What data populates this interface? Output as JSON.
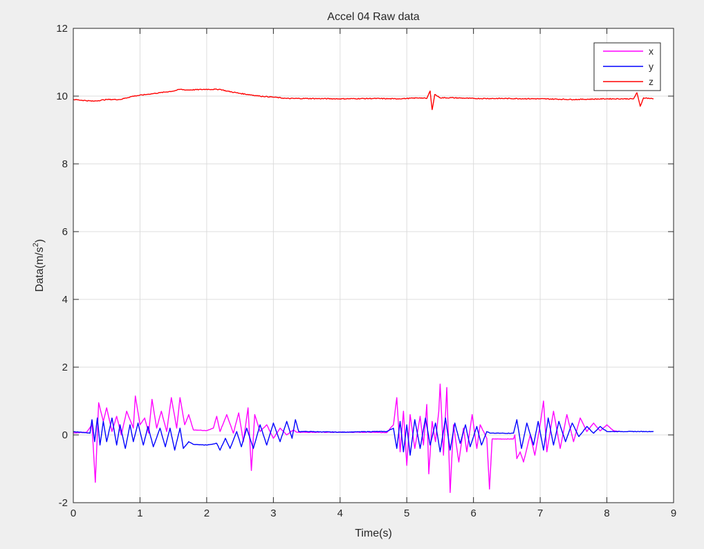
{
  "window": {
    "background": "#efefef"
  },
  "chart_data": {
    "type": "line",
    "title": "Accel 04 Raw data",
    "xlabel": "Time(s)",
    "ylabel": {
      "text": "Data(m/s",
      "superscript": "2",
      "suffix": ")"
    },
    "xlim": [
      0,
      9
    ],
    "ylim": [
      -2,
      12
    ],
    "xticks": [
      0,
      1,
      2,
      3,
      4,
      5,
      6,
      7,
      8,
      9
    ],
    "xtick_labels": [
      "0",
      "1",
      "2",
      "3",
      "4",
      "5",
      "6",
      "7",
      "8",
      "9"
    ],
    "yticks": [
      -2,
      0,
      2,
      4,
      6,
      8,
      10,
      12
    ],
    "ytick_labels": [
      "-2",
      "0",
      "2",
      "4",
      "6",
      "8",
      "10",
      "12"
    ],
    "grid": true,
    "legend_position": "top-right",
    "series": [
      {
        "name": "x",
        "color": "#ff00ff",
        "points": [
          [
            0,
            0.06
          ],
          [
            0.2,
            0.08
          ],
          [
            0.28,
            0.3
          ],
          [
            0.33,
            -1.4
          ],
          [
            0.38,
            0.95
          ],
          [
            0.45,
            0.4
          ],
          [
            0.5,
            0.8
          ],
          [
            0.58,
            0.1
          ],
          [
            0.65,
            0.55
          ],
          [
            0.72,
            0.0
          ],
          [
            0.8,
            0.7
          ],
          [
            0.9,
            0.2
          ],
          [
            0.93,
            1.15
          ],
          [
            1.0,
            0.3
          ],
          [
            1.07,
            0.5
          ],
          [
            1.13,
            0.05
          ],
          [
            1.18,
            1.05
          ],
          [
            1.25,
            0.2
          ],
          [
            1.32,
            0.7
          ],
          [
            1.4,
            0.1
          ],
          [
            1.47,
            1.1
          ],
          [
            1.55,
            0.2
          ],
          [
            1.6,
            1.1
          ],
          [
            1.67,
            0.3
          ],
          [
            1.73,
            0.6
          ],
          [
            1.8,
            0.15
          ],
          [
            1.9,
            0.14
          ],
          [
            2.0,
            0.13
          ],
          [
            2.1,
            0.2
          ],
          [
            2.15,
            0.55
          ],
          [
            2.2,
            0.1
          ],
          [
            2.3,
            0.6
          ],
          [
            2.4,
            0.05
          ],
          [
            2.48,
            0.65
          ],
          [
            2.55,
            -0.2
          ],
          [
            2.62,
            0.8
          ],
          [
            2.67,
            -1.05
          ],
          [
            2.72,
            0.6
          ],
          [
            2.8,
            0.1
          ],
          [
            2.9,
            0.3
          ],
          [
            3.0,
            -0.1
          ],
          [
            3.1,
            0.2
          ],
          [
            3.2,
            0.0
          ],
          [
            3.3,
            0.15
          ],
          [
            3.35,
            0.08
          ],
          [
            3.5,
            0.08
          ],
          [
            4.0,
            0.08
          ],
          [
            4.5,
            0.08
          ],
          [
            4.7,
            0.07
          ],
          [
            4.8,
            0.3
          ],
          [
            4.85,
            1.1
          ],
          [
            4.9,
            -0.5
          ],
          [
            4.95,
            0.7
          ],
          [
            5.0,
            -0.9
          ],
          [
            5.05,
            0.6
          ],
          [
            5.12,
            -0.4
          ],
          [
            5.2,
            0.55
          ],
          [
            5.25,
            -0.3
          ],
          [
            5.3,
            0.9
          ],
          [
            5.33,
            -1.15
          ],
          [
            5.38,
            0.4
          ],
          [
            5.43,
            -0.2
          ],
          [
            5.48,
            0.7
          ],
          [
            5.5,
            1.5
          ],
          [
            5.55,
            -0.6
          ],
          [
            5.6,
            1.4
          ],
          [
            5.65,
            -1.7
          ],
          [
            5.7,
            0.3
          ],
          [
            5.78,
            -0.8
          ],
          [
            5.85,
            0.2
          ],
          [
            5.9,
            -0.5
          ],
          [
            5.98,
            0.6
          ],
          [
            6.05,
            -0.4
          ],
          [
            6.1,
            0.3
          ],
          [
            6.2,
            -0.1
          ],
          [
            6.24,
            -1.6
          ],
          [
            6.28,
            -0.12
          ],
          [
            6.4,
            -0.12
          ],
          [
            6.6,
            -0.12
          ],
          [
            6.62,
            0.0
          ],
          [
            6.65,
            -0.7
          ],
          [
            6.7,
            -0.5
          ],
          [
            6.75,
            -0.8
          ],
          [
            6.85,
            0.0
          ],
          [
            6.92,
            -0.6
          ],
          [
            7.0,
            0.3
          ],
          [
            7.05,
            1.0
          ],
          [
            7.1,
            -0.5
          ],
          [
            7.2,
            0.7
          ],
          [
            7.3,
            -0.4
          ],
          [
            7.4,
            0.6
          ],
          [
            7.5,
            -0.2
          ],
          [
            7.6,
            0.5
          ],
          [
            7.7,
            0.1
          ],
          [
            7.8,
            0.35
          ],
          [
            7.9,
            0.12
          ],
          [
            8.0,
            0.3
          ],
          [
            8.1,
            0.12
          ],
          [
            8.2,
            0.1
          ]
        ]
      },
      {
        "name": "y",
        "color": "#0000ff",
        "points": [
          [
            0,
            0.1
          ],
          [
            0.25,
            0.05
          ],
          [
            0.28,
            0.45
          ],
          [
            0.32,
            -0.2
          ],
          [
            0.36,
            0.5
          ],
          [
            0.4,
            -0.3
          ],
          [
            0.45,
            0.4
          ],
          [
            0.5,
            -0.2
          ],
          [
            0.58,
            0.5
          ],
          [
            0.65,
            -0.3
          ],
          [
            0.7,
            0.3
          ],
          [
            0.78,
            -0.4
          ],
          [
            0.85,
            0.3
          ],
          [
            0.9,
            -0.2
          ],
          [
            0.97,
            0.35
          ],
          [
            1.05,
            -0.3
          ],
          [
            1.12,
            0.25
          ],
          [
            1.2,
            -0.35
          ],
          [
            1.3,
            0.2
          ],
          [
            1.38,
            -0.35
          ],
          [
            1.45,
            0.2
          ],
          [
            1.52,
            -0.45
          ],
          [
            1.6,
            0.2
          ],
          [
            1.65,
            -0.4
          ],
          [
            1.73,
            -0.2
          ],
          [
            1.8,
            -0.28
          ],
          [
            2.0,
            -0.3
          ],
          [
            2.15,
            -0.25
          ],
          [
            2.2,
            -0.45
          ],
          [
            2.28,
            -0.1
          ],
          [
            2.35,
            -0.4
          ],
          [
            2.45,
            0.1
          ],
          [
            2.52,
            -0.35
          ],
          [
            2.6,
            0.2
          ],
          [
            2.7,
            -0.4
          ],
          [
            2.8,
            0.3
          ],
          [
            2.9,
            -0.3
          ],
          [
            3.0,
            0.35
          ],
          [
            3.1,
            -0.2
          ],
          [
            3.2,
            0.4
          ],
          [
            3.28,
            -0.1
          ],
          [
            3.33,
            0.45
          ],
          [
            3.38,
            0.1
          ],
          [
            3.5,
            0.1
          ],
          [
            4.0,
            0.08
          ],
          [
            4.5,
            0.1
          ],
          [
            4.7,
            0.1
          ],
          [
            4.8,
            0.2
          ],
          [
            4.85,
            -0.4
          ],
          [
            4.9,
            0.4
          ],
          [
            4.95,
            -0.5
          ],
          [
            5.0,
            0.3
          ],
          [
            5.05,
            -0.6
          ],
          [
            5.12,
            0.45
          ],
          [
            5.2,
            -0.4
          ],
          [
            5.28,
            0.5
          ],
          [
            5.35,
            -0.3
          ],
          [
            5.43,
            0.35
          ],
          [
            5.5,
            -0.5
          ],
          [
            5.58,
            0.5
          ],
          [
            5.65,
            -0.45
          ],
          [
            5.72,
            0.35
          ],
          [
            5.8,
            -0.25
          ],
          [
            5.88,
            0.3
          ],
          [
            5.95,
            -0.35
          ],
          [
            6.05,
            0.25
          ],
          [
            6.12,
            -0.3
          ],
          [
            6.2,
            0.1
          ],
          [
            6.25,
            0.05
          ],
          [
            6.6,
            0.05
          ],
          [
            6.65,
            0.45
          ],
          [
            6.72,
            -0.4
          ],
          [
            6.8,
            0.35
          ],
          [
            6.9,
            -0.3
          ],
          [
            6.97,
            0.4
          ],
          [
            7.05,
            -0.45
          ],
          [
            7.12,
            0.5
          ],
          [
            7.2,
            -0.3
          ],
          [
            7.28,
            0.4
          ],
          [
            7.38,
            -0.2
          ],
          [
            7.48,
            0.35
          ],
          [
            7.58,
            -0.05
          ],
          [
            7.7,
            0.25
          ],
          [
            7.8,
            0.05
          ],
          [
            7.9,
            0.25
          ],
          [
            8.0,
            0.1
          ],
          [
            8.2,
            0.1
          ],
          [
            8.5,
            0.1
          ],
          [
            8.7,
            0.1
          ]
        ]
      },
      {
        "name": "z",
        "color": "#ff0000",
        "points": [
          [
            0,
            9.9
          ],
          [
            0.3,
            9.85
          ],
          [
            0.5,
            9.9
          ],
          [
            0.7,
            9.9
          ],
          [
            0.9,
            10.0
          ],
          [
            1.1,
            10.05
          ],
          [
            1.3,
            10.1
          ],
          [
            1.5,
            10.15
          ],
          [
            1.6,
            10.2
          ],
          [
            1.7,
            10.18
          ],
          [
            2.0,
            10.2
          ],
          [
            2.2,
            10.2
          ],
          [
            2.3,
            10.15
          ],
          [
            2.5,
            10.08
          ],
          [
            2.8,
            10.0
          ],
          [
            3.0,
            9.97
          ],
          [
            3.2,
            9.93
          ],
          [
            3.5,
            9.93
          ],
          [
            4.0,
            9.92
          ],
          [
            4.5,
            9.93
          ],
          [
            4.8,
            9.92
          ],
          [
            5.0,
            9.93
          ],
          [
            5.2,
            9.95
          ],
          [
            5.3,
            9.93
          ],
          [
            5.35,
            10.15
          ],
          [
            5.38,
            9.6
          ],
          [
            5.42,
            10.05
          ],
          [
            5.5,
            9.95
          ],
          [
            5.7,
            9.95
          ],
          [
            6.0,
            9.93
          ],
          [
            6.5,
            9.93
          ],
          [
            7.0,
            9.92
          ],
          [
            7.5,
            9.9
          ],
          [
            8.0,
            9.92
          ],
          [
            8.4,
            9.92
          ],
          [
            8.45,
            10.1
          ],
          [
            8.5,
            9.7
          ],
          [
            8.55,
            9.95
          ],
          [
            8.7,
            9.92
          ]
        ]
      }
    ]
  }
}
